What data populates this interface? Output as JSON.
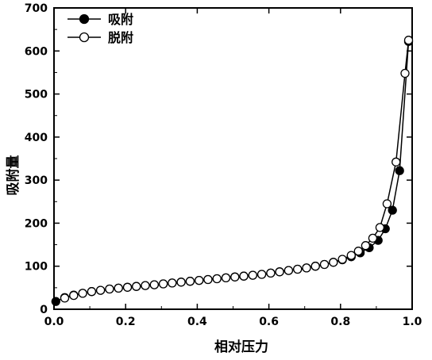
{
  "chart_data": {
    "type": "scatter",
    "title": "",
    "xlabel": "相对压力",
    "ylabel": "吸附量",
    "xlim": [
      0.0,
      1.0
    ],
    "ylim": [
      0,
      700
    ],
    "x_ticks": [
      "0.0",
      "0.2",
      "0.4",
      "0.6",
      "0.8",
      "1.0"
    ],
    "y_ticks": [
      "0",
      "100",
      "200",
      "300",
      "400",
      "500",
      "600",
      "700"
    ],
    "grid": false,
    "legend_position": "top-left",
    "series": [
      {
        "name": "吸附",
        "marker": "filled-circle",
        "color": "#000000",
        "x": [
          0.005,
          0.03,
          0.055,
          0.08,
          0.105,
          0.13,
          0.155,
          0.18,
          0.205,
          0.23,
          0.255,
          0.28,
          0.305,
          0.33,
          0.355,
          0.38,
          0.405,
          0.43,
          0.455,
          0.48,
          0.505,
          0.53,
          0.555,
          0.58,
          0.605,
          0.63,
          0.655,
          0.68,
          0.705,
          0.73,
          0.755,
          0.78,
          0.805,
          0.83,
          0.855,
          0.88,
          0.905,
          0.925,
          0.945,
          0.965,
          0.99
        ],
        "y": [
          18,
          27,
          33,
          37,
          41,
          44,
          47,
          49,
          51,
          53,
          55,
          57,
          59,
          61,
          63,
          65,
          67,
          69,
          71,
          73,
          75,
          77,
          79,
          81,
          84,
          87,
          90,
          93,
          96,
          100,
          104,
          109,
          115,
          122,
          131,
          143,
          160,
          187,
          230,
          322,
          622
        ]
      },
      {
        "name": "脱附",
        "marker": "open-circle",
        "color": "#000000",
        "x": [
          0.03,
          0.055,
          0.08,
          0.105,
          0.13,
          0.155,
          0.18,
          0.205,
          0.23,
          0.255,
          0.28,
          0.305,
          0.33,
          0.355,
          0.38,
          0.405,
          0.43,
          0.455,
          0.48,
          0.505,
          0.53,
          0.555,
          0.58,
          0.605,
          0.63,
          0.655,
          0.68,
          0.705,
          0.73,
          0.755,
          0.78,
          0.805,
          0.83,
          0.85,
          0.87,
          0.89,
          0.91,
          0.93,
          0.955,
          0.98,
          0.99
        ],
        "y": [
          26,
          32,
          37,
          41,
          44,
          47,
          49,
          51,
          53,
          55,
          57,
          59,
          61,
          63,
          65,
          67,
          69,
          71,
          73,
          75,
          77,
          79,
          81,
          84,
          87,
          90,
          93,
          96,
          100,
          104,
          109,
          116,
          125,
          135,
          148,
          165,
          190,
          245,
          342,
          548,
          625
        ]
      }
    ]
  }
}
